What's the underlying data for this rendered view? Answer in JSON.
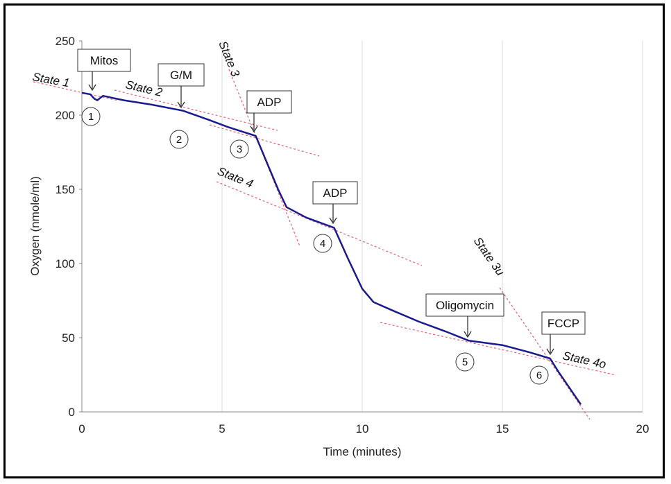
{
  "chart_data": {
    "type": "line",
    "xlabel": "Time (minutes)",
    "ylabel": "Oxygen (nmole/ml)",
    "xlim": [
      0,
      20
    ],
    "ylim": [
      0,
      250
    ],
    "x_ticks": [
      0,
      5,
      10,
      15,
      20
    ],
    "y_ticks": [
      0,
      50,
      100,
      150,
      200,
      250
    ],
    "grid": "vertical",
    "series": [
      {
        "color": "#1a1a8c",
        "x": [
          0,
          0.3,
          0.45,
          0.55,
          0.75,
          1.5,
          2.5,
          3.6,
          4.5,
          5.2,
          6.2,
          6.6,
          7.0,
          7.3,
          8.0,
          9.0,
          9.5,
          10.0,
          10.4,
          11.0,
          12.0,
          13.0,
          13.8,
          15.0,
          16.0,
          16.7,
          17.0,
          17.4,
          17.8
        ],
        "y": [
          215,
          214,
          211,
          210,
          213,
          210,
          207,
          203,
          197,
          192,
          186,
          168,
          150,
          138,
          131,
          124,
          103,
          83,
          74,
          69,
          61,
          54,
          48,
          45,
          40,
          36,
          27,
          16,
          5
        ]
      }
    ],
    "annotations": {
      "boxes": [
        {
          "text": "Mitos",
          "x": 0.4
        },
        {
          "text": "G/M",
          "x": 3.6
        },
        {
          "text": "ADP",
          "x": 6.2
        },
        {
          "text": "ADP",
          "x": 9.0
        },
        {
          "text": "Oligomycin",
          "x": 13.8
        },
        {
          "text": "FCCP",
          "x": 16.7
        }
      ],
      "markers": [
        "1",
        "2",
        "3",
        "4",
        "5",
        "6"
      ],
      "states": [
        "State 1",
        "State 2",
        "State 3",
        "State 4",
        "State 3u",
        "State 4o"
      ]
    }
  }
}
